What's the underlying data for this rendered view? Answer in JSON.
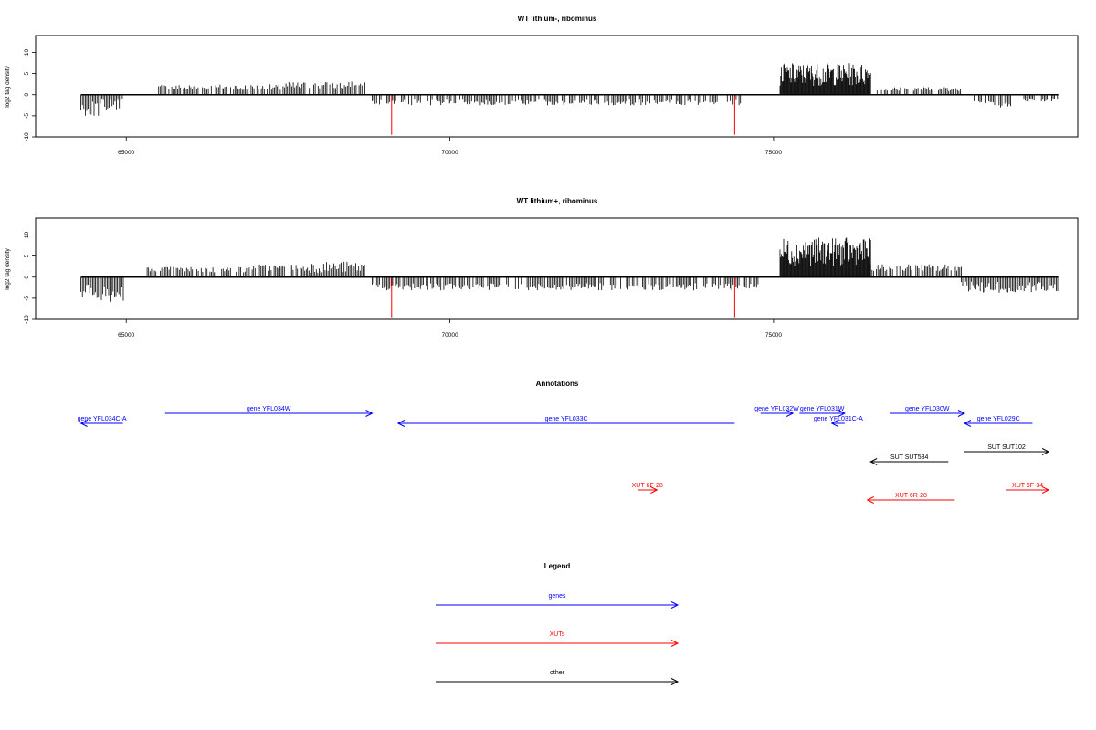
{
  "chart_data": [
    {
      "type": "bar",
      "title": "WT lithium-, ribominus",
      "ylabel": "log2 tag density",
      "xlabel": "",
      "xlim": [
        63600,
        79700
      ],
      "ylim": [
        -10,
        14
      ],
      "x_ticks": [
        "65000",
        "70000",
        "75000"
      ],
      "y_ticks": [
        "-10",
        "-5",
        "0",
        "5",
        "10"
      ],
      "density_profile": [
        {
          "from": 64300,
          "to": 64600,
          "value": -4
        },
        {
          "from": 64600,
          "to": 64960,
          "value": -3
        },
        {
          "from": 65500,
          "to": 66500,
          "value": 2
        },
        {
          "from": 66500,
          "to": 67400,
          "value": 2
        },
        {
          "from": 67400,
          "to": 68700,
          "value": 2.5
        },
        {
          "from": 68800,
          "to": 74500,
          "value": -2
        },
        {
          "from": 75100,
          "to": 76500,
          "value": 6
        },
        {
          "from": 76600,
          "to": 77900,
          "value": 1.5
        },
        {
          "from": 78100,
          "to": 78700,
          "value": -2.5
        },
        {
          "from": 78800,
          "to": 79400,
          "value": -1.5
        }
      ],
      "highlight_bars": [
        {
          "x": 69100,
          "value": -9.5
        },
        {
          "x": 74400,
          "value": -9.5
        }
      ]
    },
    {
      "type": "bar",
      "title": "WT lithium+, ribominus",
      "ylabel": "log2 tag density",
      "xlabel": "",
      "xlim": [
        63600,
        79700
      ],
      "ylim": [
        -10,
        14
      ],
      "x_ticks": [
        "65000",
        "70000",
        "75000"
      ],
      "y_ticks": [
        "-10",
        "-5",
        "0",
        "5",
        "10"
      ],
      "density_profile": [
        {
          "from": 64300,
          "to": 64960,
          "value": -5
        },
        {
          "from": 65300,
          "to": 66900,
          "value": 2
        },
        {
          "from": 66900,
          "to": 67800,
          "value": 2.5
        },
        {
          "from": 67800,
          "to": 68700,
          "value": 3
        },
        {
          "from": 68800,
          "to": 74800,
          "value": -2.5
        },
        {
          "from": 75100,
          "to": 76500,
          "value": 7.5
        },
        {
          "from": 76500,
          "to": 77900,
          "value": 2.5
        },
        {
          "from": 77900,
          "to": 79400,
          "value": -3
        }
      ],
      "highlight_bars": [
        {
          "x": 69100,
          "value": -9.5
        },
        {
          "x": 74400,
          "value": -9.5
        }
      ]
    },
    {
      "type": "gene-track",
      "title": "Annotations",
      "features": [
        {
          "label": "gene YFL034C-A",
          "start": 64300,
          "end": 64950,
          "strand": "-",
          "kind": "gene",
          "row": 2
        },
        {
          "label": "gene YFL034W",
          "start": 65600,
          "end": 68800,
          "strand": "+",
          "kind": "gene",
          "row": 1
        },
        {
          "label": "gene YFL033C",
          "start": 69200,
          "end": 74400,
          "strand": "-",
          "kind": "gene",
          "row": 2
        },
        {
          "label": "gene YFL032W",
          "start": 74800,
          "end": 75300,
          "strand": "+",
          "kind": "gene",
          "row": 1
        },
        {
          "label": "gene YFL031W",
          "start": 75400,
          "end": 76100,
          "strand": "+",
          "kind": "gene",
          "row": 1
        },
        {
          "label": "gene YFL031C-A",
          "start": 75900,
          "end": 76100,
          "strand": "-",
          "kind": "gene",
          "row": 2
        },
        {
          "label": "gene YFL030W",
          "start": 76800,
          "end": 77950,
          "strand": "+",
          "kind": "gene",
          "row": 1
        },
        {
          "label": "gene YFL029C",
          "start": 77950,
          "end": 79000,
          "strand": "-",
          "kind": "gene",
          "row": 2
        },
        {
          "label": "SUT SUT534",
          "start": 76500,
          "end": 77700,
          "strand": "-",
          "kind": "other",
          "row": 4
        },
        {
          "label": "SUT SUT102",
          "start": 77950,
          "end": 79250,
          "strand": "+",
          "kind": "other",
          "row": 3
        },
        {
          "label": "XUT 6F-28",
          "start": 72900,
          "end": 73200,
          "strand": "+",
          "kind": "xut",
          "row": 5
        },
        {
          "label": "XUT 6R-28",
          "start": 76450,
          "end": 77800,
          "strand": "-",
          "kind": "xut",
          "row": 6
        },
        {
          "label": "XUT 6F-34",
          "start": 78600,
          "end": 79250,
          "strand": "+",
          "kind": "xut",
          "row": 5
        }
      ]
    },
    {
      "type": "legend",
      "title": "Legend",
      "entries": [
        {
          "label": "genes",
          "color": "#0000ff"
        },
        {
          "label": "XUTs",
          "color": "#ff0000"
        },
        {
          "label": "other",
          "color": "#000000"
        }
      ]
    }
  ],
  "colors": {
    "gene": "#0000ff",
    "xut": "#ff0000",
    "other": "#000000",
    "bars": "#000000",
    "highlight": "#ff0000"
  }
}
